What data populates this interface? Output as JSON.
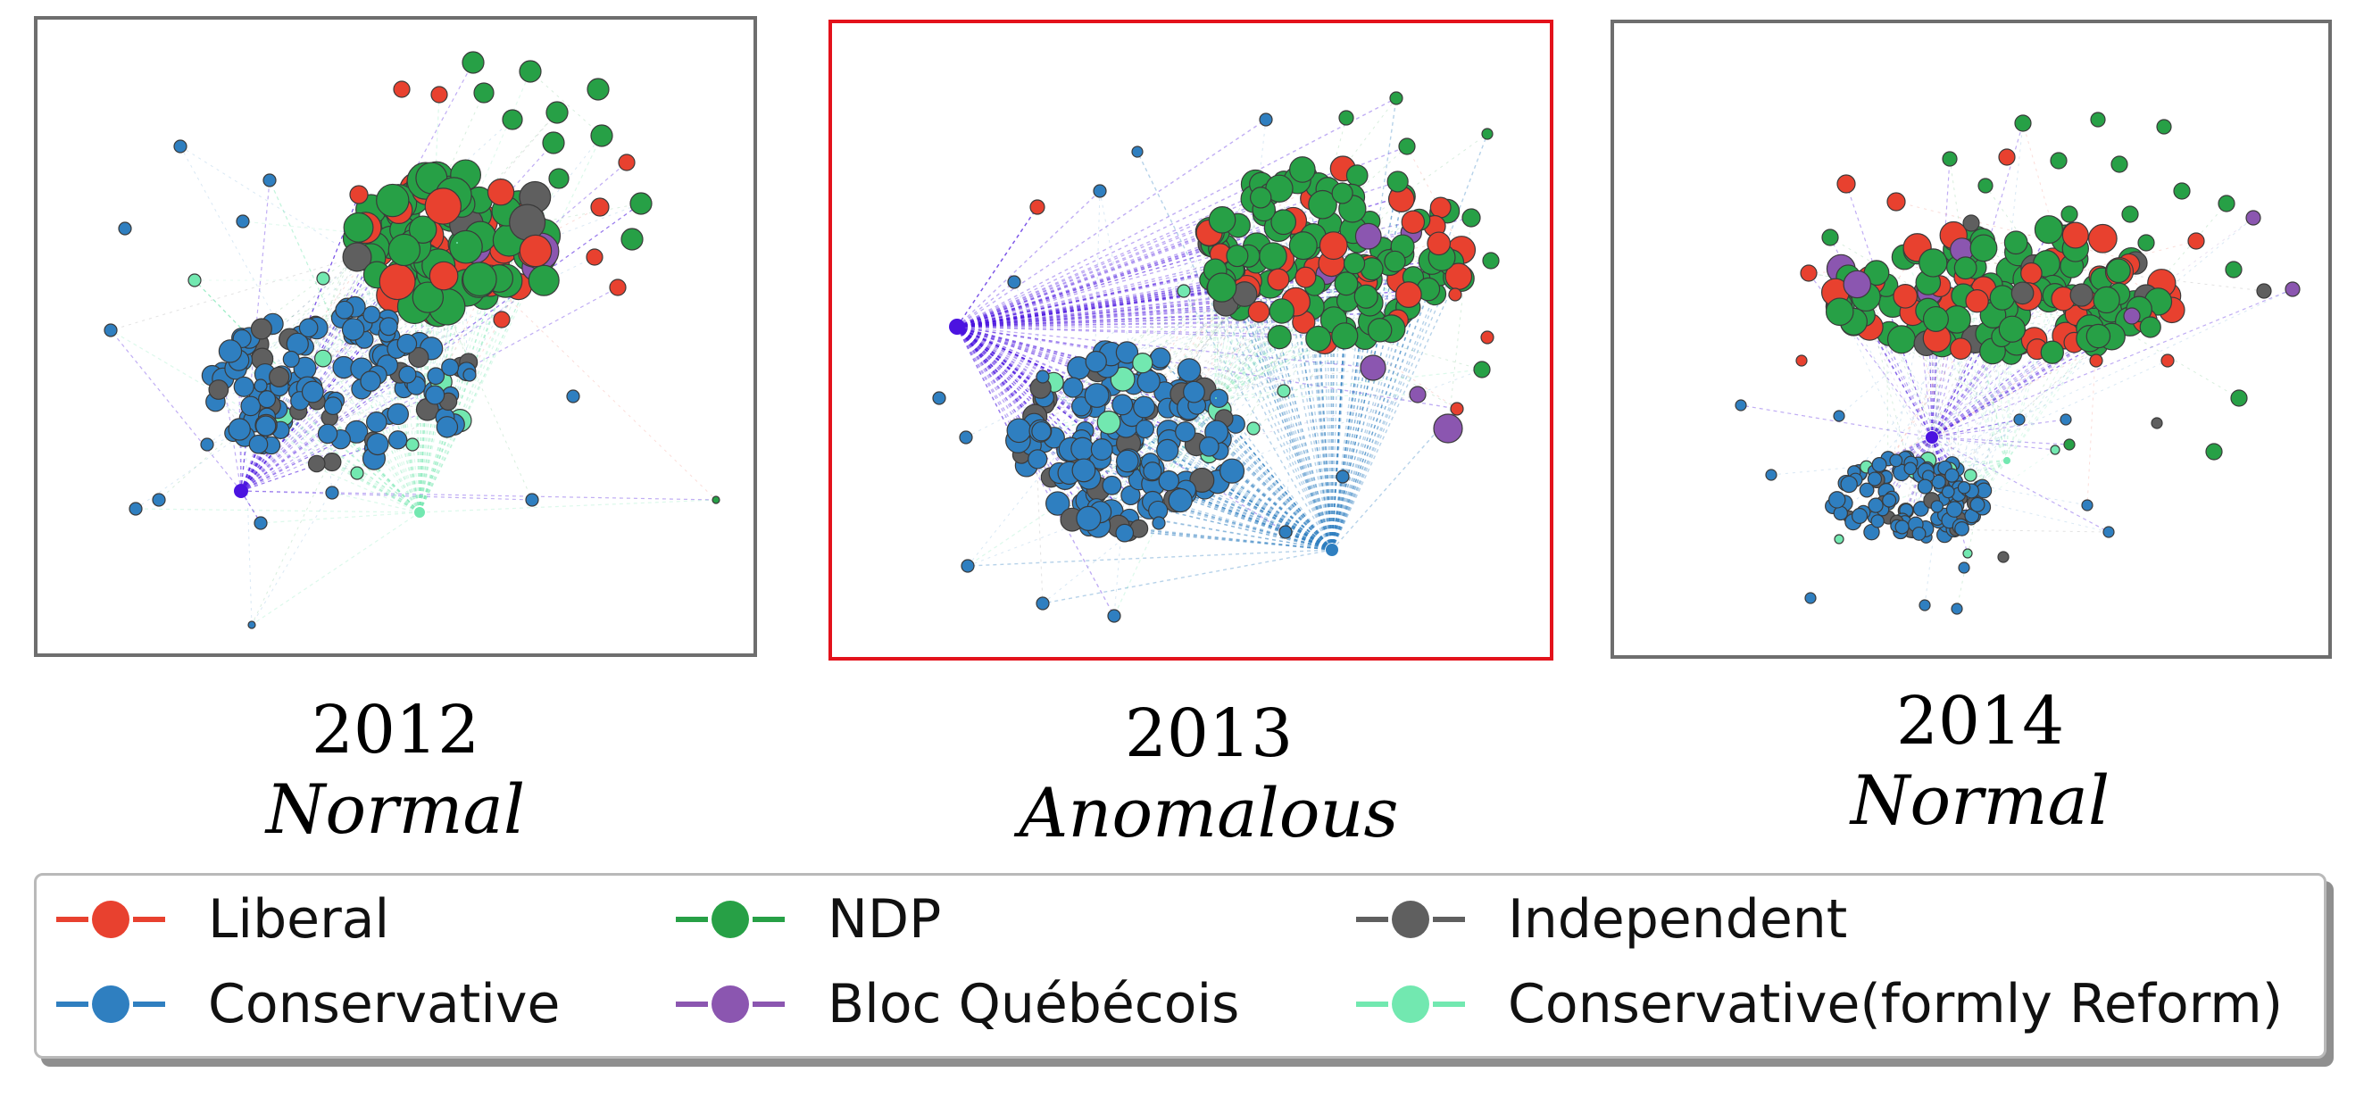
{
  "colors": {
    "liberal": "#e8412f",
    "ndp": "#27a046",
    "independent": "#5f5f5f",
    "conservative": "#2f7fc0",
    "bloc": "#8b56b0",
    "reform": "#72e8b0",
    "hub": "#4b13e0",
    "anomaly_border": "#e3121b"
  },
  "panels": [
    {
      "year": "2012",
      "status": "Normal"
    },
    {
      "year": "2013",
      "status": "Anomalous"
    },
    {
      "year": "2014",
      "status": "Normal"
    }
  ],
  "legend": [
    {
      "label": "Liberal",
      "color_key": "liberal"
    },
    {
      "label": "NDP",
      "color_key": "ndp"
    },
    {
      "label": "Independent",
      "color_key": "independent"
    },
    {
      "label": "Conservative",
      "color_key": "conservative"
    },
    {
      "label": "Bloc Québécois",
      "color_key": "bloc"
    },
    {
      "label": "Conservative(formly Reform)",
      "color_key": "reform"
    }
  ]
}
